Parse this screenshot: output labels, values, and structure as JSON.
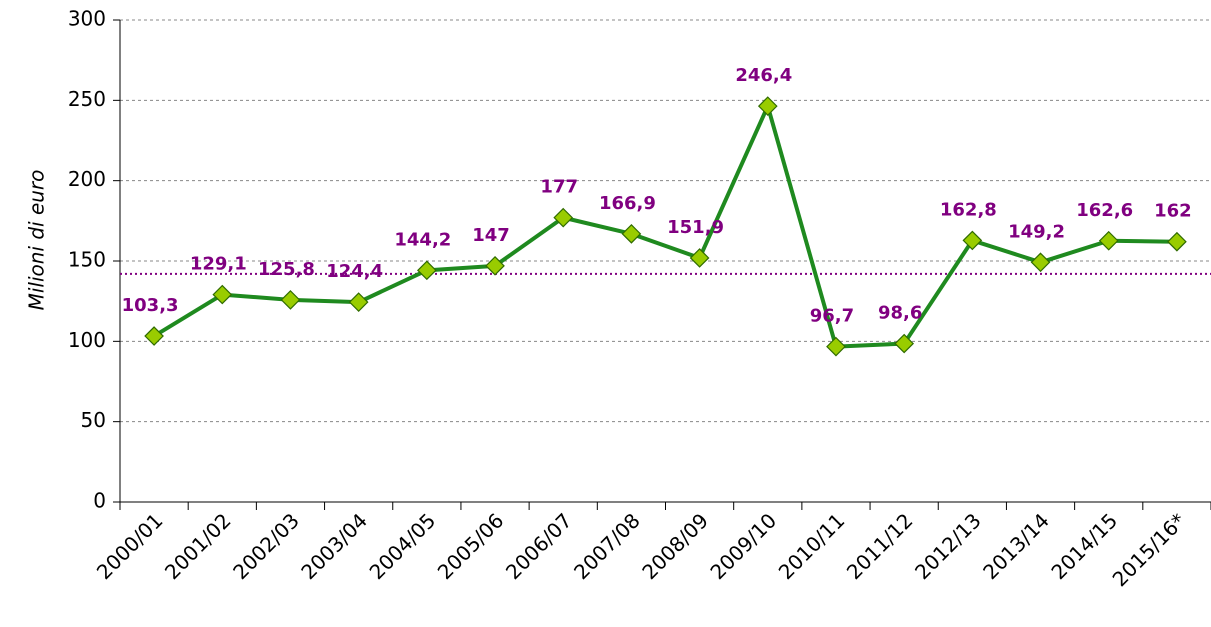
{
  "chart_data": {
    "type": "line",
    "y_label": "Milioni di euro",
    "categories": [
      "2000/01",
      "2001/02",
      "2002/03",
      "2003/04",
      "2004/05",
      "2005/06",
      "2006/07",
      "2007/08",
      "2008/09",
      "2009/10",
      "2010/11",
      "2011/12",
      "2012/13",
      "2013/14",
      "2014/15",
      "2015/16*"
    ],
    "series": [
      {
        "color": "#1f8a1f",
        "marker_color": "#99cc00",
        "values": [
          103.3,
          129.1,
          125.8,
          124.4,
          144.2,
          147,
          177,
          166.9,
          151.9,
          246.4,
          96.7,
          98.6,
          162.8,
          149.2,
          162.6,
          162
        ],
        "value_labels": [
          "103,3",
          "129,1",
          "125,8",
          "124,4",
          "144,2",
          "147",
          "177",
          "166,9",
          "151,9",
          "246,4",
          "96,7",
          "98,6",
          "162,8",
          "149,2",
          "162,6",
          "162"
        ]
      }
    ],
    "label_color": "#800080",
    "reference_line": {
      "value": 142,
      "color": "#800080"
    },
    "ylim": [
      0,
      300
    ],
    "yticks": [
      0,
      50,
      100,
      150,
      200,
      250,
      300
    ],
    "grid": true
  }
}
